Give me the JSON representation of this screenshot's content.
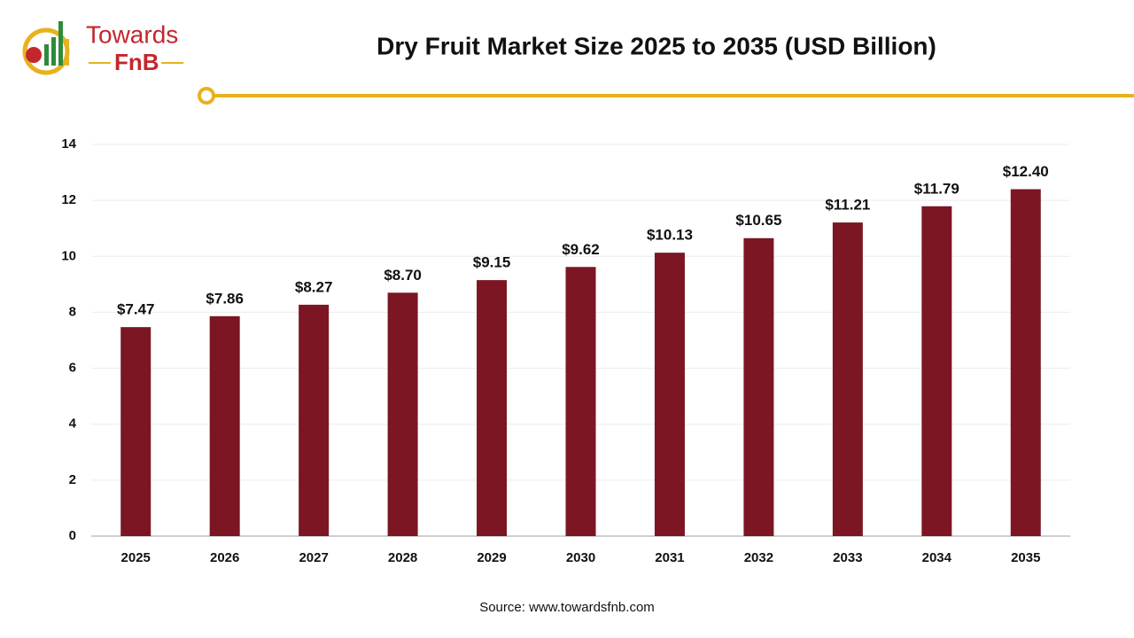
{
  "logo": {
    "top": "Towards",
    "bottom": "FnB"
  },
  "chart_data": {
    "type": "bar",
    "title": "Dry Fruit Market Size 2025 to 2035 (USD Billion)",
    "categories": [
      "2025",
      "2026",
      "2027",
      "2028",
      "2029",
      "2030",
      "2031",
      "2032",
      "2033",
      "2034",
      "2035"
    ],
    "values": [
      7.47,
      7.86,
      8.27,
      8.7,
      9.15,
      9.62,
      10.13,
      10.65,
      11.21,
      11.79,
      12.4
    ],
    "value_labels": [
      "$7.47",
      "$7.86",
      "$8.27",
      "$8.70",
      "$9.15",
      "$9.62",
      "$10.13",
      "$10.65",
      "$11.21",
      "$11.79",
      "$12.40"
    ],
    "color": "#7b1622",
    "ylim": [
      0,
      14
    ],
    "yticks": [
      0,
      2,
      4,
      6,
      8,
      10,
      12,
      14
    ],
    "grid": true,
    "source": "Source: www.towardsfnb.com"
  }
}
